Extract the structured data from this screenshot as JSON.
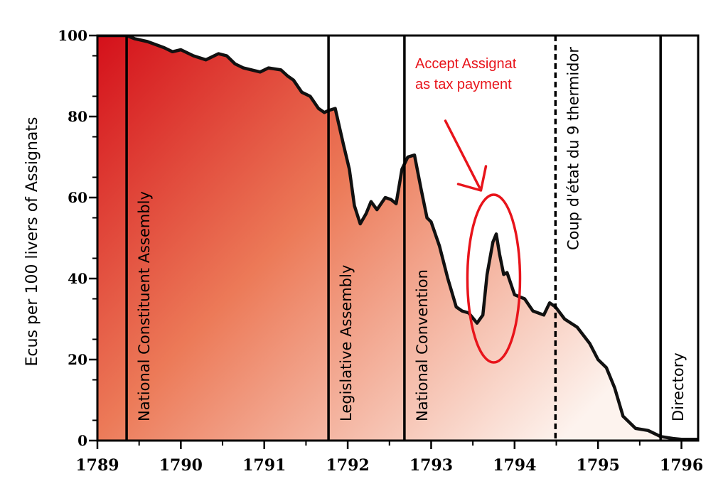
{
  "chart_data": {
    "type": "area",
    "title": "",
    "xlabel": "",
    "ylabel": "Ecus per 100 livers of Assignats",
    "xlim": [
      1789,
      1796.2
    ],
    "ylim": [
      0,
      100
    ],
    "x_ticks": [
      "1789",
      "1790",
      "1791",
      "1792",
      "1793",
      "1794",
      "1795",
      "1796"
    ],
    "y_ticks": [
      "0",
      "20",
      "40",
      "60",
      "80",
      "100"
    ],
    "grid": false,
    "colors": {
      "fill_dark": "#d4101a",
      "fill_light": "#fdf3ee",
      "line": "#111111",
      "annotation": "#e8141b"
    },
    "series": [
      {
        "x": [
          1789.0,
          1789.35,
          1789.45,
          1789.6,
          1789.8,
          1789.9,
          1790.0,
          1790.15,
          1790.3,
          1790.45,
          1790.55,
          1790.65,
          1790.75,
          1790.85,
          1790.95,
          1791.05,
          1791.2,
          1791.28,
          1791.35,
          1791.45,
          1791.55,
          1791.65,
          1791.72,
          1791.77,
          1791.85,
          1791.95,
          1792.02,
          1792.08,
          1792.15,
          1792.22,
          1792.28,
          1792.35,
          1792.45,
          1792.52,
          1792.58,
          1792.65,
          1792.72,
          1792.8,
          1792.88,
          1792.95,
          1793.0,
          1793.1,
          1793.2,
          1793.3,
          1793.37,
          1793.45,
          1793.55,
          1793.62,
          1793.67,
          1793.74,
          1793.78,
          1793.82,
          1793.87,
          1793.91,
          1794.0,
          1794.12,
          1794.22,
          1794.35,
          1794.42,
          1794.49,
          1794.6,
          1794.75,
          1794.9,
          1795.0,
          1795.1,
          1795.2,
          1795.3,
          1795.45,
          1795.6,
          1795.75,
          1795.9,
          1796.0,
          1796.1
        ],
        "y": [
          100,
          100,
          99.2,
          98.5,
          97,
          96,
          96.5,
          95,
          94,
          95.5,
          95,
          93,
          92,
          91.5,
          91,
          92,
          91.5,
          90,
          89,
          86,
          85,
          82,
          81,
          81.5,
          82,
          73,
          67,
          58,
          53.5,
          56,
          59,
          57,
          60,
          59.5,
          58.5,
          67,
          70,
          70.5,
          62,
          55,
          54,
          48,
          40,
          33,
          32,
          31.5,
          29,
          31,
          41,
          49,
          51,
          46,
          41,
          41.5,
          36,
          35,
          32,
          31,
          34,
          33,
          30,
          28,
          24,
          20,
          18,
          13,
          6,
          3,
          2.5,
          1,
          0.5,
          0.3,
          0.3
        ]
      }
    ],
    "eras": [
      {
        "label": "National Constituent Assembly",
        "x": 1789.35,
        "style": "solid"
      },
      {
        "label": "Legislative Assembly",
        "x": 1791.77,
        "style": "solid"
      },
      {
        "label": "National Convention",
        "x": 1792.68,
        "style": "solid"
      },
      {
        "label": "Coup d'état du 9 thermidor",
        "x": 1794.49,
        "style": "dashed"
      },
      {
        "label": "Directory",
        "x": 1795.75,
        "style": "solid"
      }
    ],
    "annotation": {
      "lines": [
        "Accept Assignat",
        "as tax payment"
      ],
      "x": 1793.75,
      "y": 40
    }
  }
}
